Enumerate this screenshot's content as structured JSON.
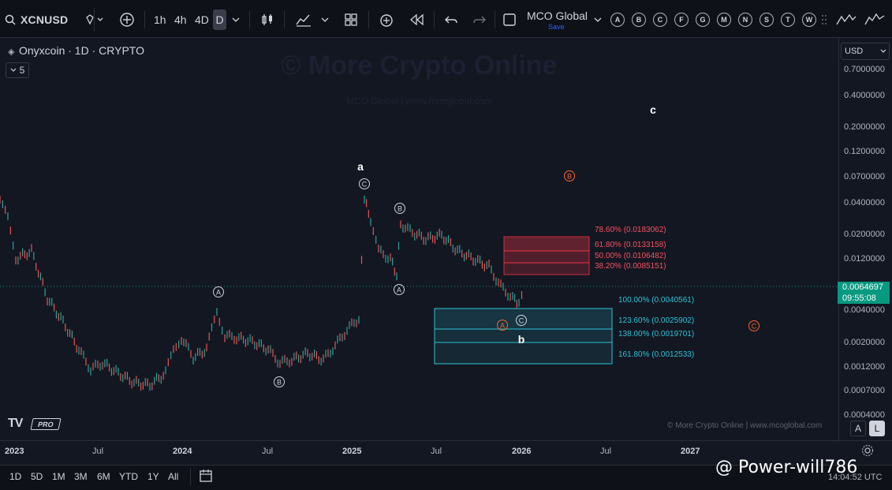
{
  "toolbar": {
    "symbol": "XCNUSD",
    "timeframes": [
      "1h",
      "4h",
      "4D",
      "D"
    ],
    "active_timeframe": "D",
    "layout_name": "MCO Global",
    "save_label": "Save",
    "drawing_letters": [
      "A",
      "B",
      "C",
      "F",
      "G",
      "M",
      "N",
      "S",
      "T",
      "W"
    ]
  },
  "legend": {
    "title": "Onyxcoin · 1D · CRYPTO",
    "indicator_count": "5"
  },
  "watermark": {
    "main": "© More Crypto Online",
    "sub": "MCO Global  |  www.mcoglobal.com",
    "footer": "© More Crypto Online  |  www.mcoglobal.com"
  },
  "price_axis": {
    "currency": "USD",
    "labels": [
      "0.7000000",
      "0.4000000",
      "0.2000000",
      "0.1200000",
      "0.0700000",
      "0.0400000",
      "0.0200000",
      "0.0120000",
      "0.0040000",
      "0.0020000",
      "0.0012000",
      "0.0007000",
      "0.0004000"
    ],
    "current_price": "0.0064697",
    "countdown": "09:55:08"
  },
  "time_axis": {
    "labels": [
      "2023",
      "Jul",
      "2024",
      "Jul",
      "2025",
      "Jul",
      "2026",
      "Jul",
      "2027"
    ]
  },
  "fib_levels": {
    "retracement": [
      "78.60% (0.0183062)",
      "61.80% (0.0133158)",
      "50.00% (0.0106482)",
      "38.20% (0.0085151)"
    ],
    "extension": [
      "100.00% (0.0040561)",
      "123.60% (0.0025902)",
      "138.00% (0.0019701)",
      "161.80% (0.0012533)"
    ]
  },
  "wave_labels": {
    "a": "a",
    "b": "b",
    "c": "c",
    "A": "A",
    "B": "B",
    "C": "C"
  },
  "bottom_bar": {
    "ranges": [
      "1D",
      "5D",
      "1M",
      "3M",
      "6M",
      "YTD",
      "1Y",
      "All"
    ],
    "clock": "14:04:52 UTC"
  },
  "scale_buttons": {
    "auto": "A",
    "log": "L"
  },
  "overlay": {
    "handle": "@ Power-will786"
  },
  "branding": {
    "pro": "PRO"
  },
  "colors": {
    "background": "#131722",
    "candle_up": "#26a69a",
    "candle_down": "#ef5350",
    "fib_red": "#f23645",
    "fib_cyan": "#2cc3d6",
    "projection_orange": "#f7662e",
    "price_tag": "#089981"
  }
}
